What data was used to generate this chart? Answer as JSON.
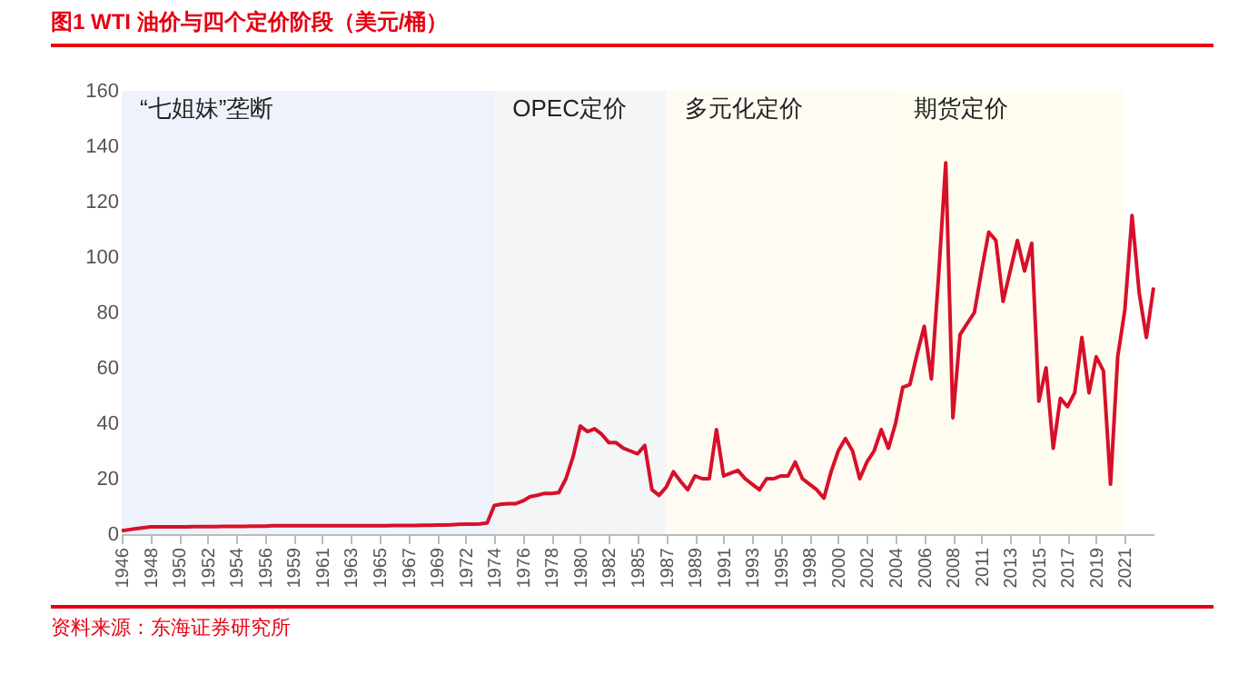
{
  "chart_data": {
    "type": "line",
    "title": "图1  WTI 油价与四个定价阶段（美元/桶）",
    "annotations": [
      "资料来源：东海证券研究所"
    ],
    "categories": [
      "1946",
      null,
      null,
      null,
      "1948",
      null,
      null,
      null,
      "1950",
      null,
      null,
      null,
      "1952",
      null,
      null,
      null,
      "1954",
      null,
      null,
      null,
      "1956",
      null,
      null,
      null,
      "1959",
      null,
      null,
      null,
      "1961",
      null,
      null,
      null,
      "1963",
      null,
      null,
      null,
      "1965",
      null,
      null,
      null,
      "1967",
      null,
      null,
      null,
      "1969",
      null,
      null,
      null,
      "1972",
      null,
      null,
      null,
      "1974",
      null,
      null,
      null,
      "1976",
      null,
      null,
      null,
      "1978",
      null,
      null,
      null,
      "1980",
      null,
      null,
      null,
      "1982",
      null,
      null,
      null,
      "1985",
      null,
      null,
      null,
      "1987",
      null,
      null,
      null,
      "1989",
      null,
      null,
      null,
      "1991",
      null,
      null,
      null,
      "1993",
      null,
      null,
      null,
      "1995",
      null,
      null,
      null,
      "1998",
      null,
      null,
      null,
      "2000",
      null,
      null,
      null,
      "2002",
      null,
      null,
      null,
      "2004",
      null,
      null,
      null,
      "2006",
      null,
      null,
      null,
      "2008",
      null,
      null,
      null,
      "2011",
      null,
      null,
      null,
      "2013",
      null,
      null,
      null,
      "2015",
      null,
      null,
      null,
      "2017",
      null,
      null,
      null,
      "2019",
      null,
      null,
      null,
      "2021",
      null,
      null,
      null,
      null
    ],
    "series": [
      {
        "color": "#d7102a",
        "values": [
          1.2,
          1.6,
          2.0,
          2.3,
          2.6,
          2.6,
          2.6,
          2.6,
          2.6,
          2.6,
          2.7,
          2.7,
          2.7,
          2.7,
          2.8,
          2.8,
          2.8,
          2.8,
          2.9,
          2.9,
          2.9,
          3.0,
          3.0,
          3.0,
          3.0,
          3.0,
          3.0,
          3.0,
          3.0,
          3.0,
          3.0,
          3.0,
          3.0,
          3.0,
          3.0,
          3.0,
          3.0,
          3.0,
          3.1,
          3.1,
          3.1,
          3.1,
          3.2,
          3.2,
          3.3,
          3.3,
          3.4,
          3.5,
          3.6,
          3.6,
          3.7,
          4.0,
          10.3,
          10.8,
          11,
          11,
          12,
          13.5,
          14,
          14.7,
          14.7,
          15,
          20,
          28,
          39,
          37,
          38,
          36,
          33,
          33,
          31,
          30,
          29,
          32,
          16,
          14,
          17,
          22.5,
          19,
          16,
          21,
          20,
          20,
          37.7,
          21,
          22,
          23,
          20,
          18,
          16,
          20,
          20,
          21,
          21,
          26,
          20,
          18,
          16,
          13,
          22.5,
          30,
          34.5,
          30,
          20,
          26,
          30,
          37.7,
          31,
          40,
          53,
          54,
          65,
          75,
          56,
          93,
          134,
          42,
          72,
          76,
          80,
          95,
          109,
          106,
          84,
          95,
          106,
          95,
          105,
          48,
          60,
          31,
          49,
          46,
          51,
          71,
          51,
          64,
          59,
          18,
          64,
          81,
          115,
          87,
          71,
          89
        ]
      }
    ],
    "ylim": [
      0,
      160
    ],
    "yticks": [
      0,
      20,
      40,
      60,
      80,
      100,
      120,
      140,
      160
    ],
    "line_style": "solid",
    "bands": [
      {
        "axis": "x",
        "from": "1946",
        "to": "1974",
        "label": "“七姐妹”垄断",
        "color": "#eef3fb"
      },
      {
        "axis": "x",
        "from": "1974",
        "to": "1987",
        "label": "OPEC定价",
        "color": "#f4f5f7"
      },
      {
        "axis": "x",
        "from": "1987",
        "to": "2004",
        "label": "多元化定价",
        "color": "#fffaf2"
      },
      {
        "axis": "x",
        "from": "2004",
        "to": "2021",
        "label": "期货定价",
        "color": "#fffdf0"
      }
    ]
  }
}
